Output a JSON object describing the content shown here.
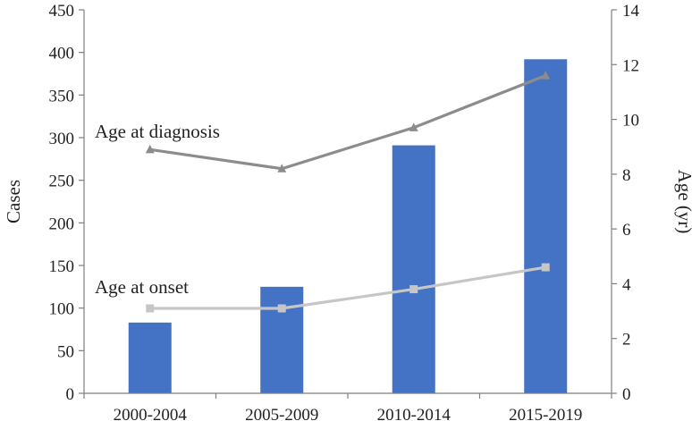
{
  "chart_data": {
    "type": "bar",
    "title": "",
    "categories": [
      "2000-2004",
      "2005-2009",
      "2010-2014",
      "2015-2019"
    ],
    "series": [
      {
        "kind": "bar",
        "axis": "left",
        "color": "#4472c4",
        "values": [
          83,
          125,
          291,
          392
        ]
      },
      {
        "kind": "line",
        "axis": "right",
        "color": "#8c8c8c",
        "marker": "triangle",
        "label": "Age at diagnosis",
        "values": [
          8.9,
          8.2,
          9.7,
          11.6
        ]
      },
      {
        "kind": "line",
        "axis": "right",
        "color": "#c6c6c6",
        "marker": "square",
        "label": "Age at onset",
        "values": [
          3.1,
          3.1,
          3.8,
          4.6
        ]
      }
    ],
    "ylabel": "Cases",
    "ylim": [
      0,
      450
    ],
    "yticks": [
      "0",
      "50",
      "100",
      "150",
      "200",
      "250",
      "300",
      "350",
      "400",
      "450"
    ],
    "y2label": "Age (yr)",
    "y2lim": [
      0,
      14
    ],
    "y2ticks": [
      "0",
      "2",
      "4",
      "6",
      "8",
      "10",
      "12",
      "14"
    ],
    "grid": false,
    "legend": "none"
  }
}
